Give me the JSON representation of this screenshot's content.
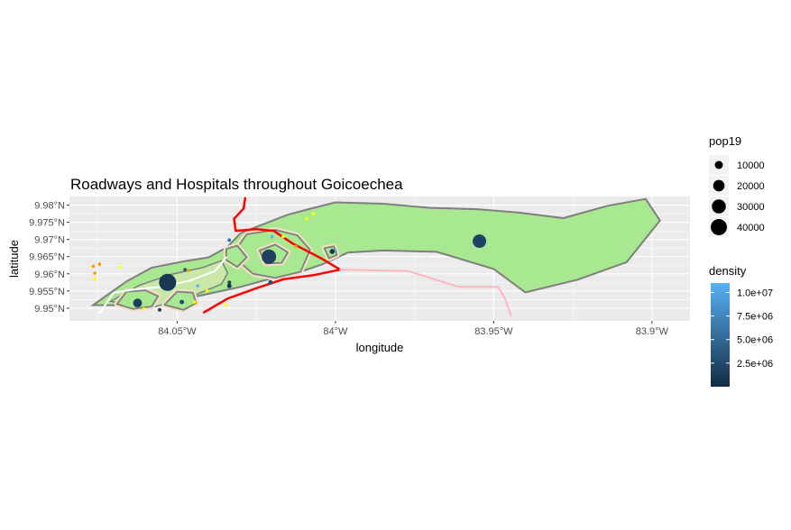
{
  "chart_data": {
    "type": "map",
    "title": "Roadways and Hospitals throughout Goicoechea",
    "xlabel": "longitude",
    "ylabel": "latitude",
    "x_ticks": [
      {
        "value": -84.05,
        "label": "84.05°W"
      },
      {
        "value": -84.0,
        "label": "84°W"
      },
      {
        "value": -83.95,
        "label": "83.95°W"
      },
      {
        "value": -83.9,
        "label": "83.9°W"
      }
    ],
    "y_ticks": [
      {
        "value": 9.95,
        "label": "9.95°N"
      },
      {
        "value": 9.955,
        "label": "9.955°N"
      },
      {
        "value": 9.96,
        "label": "9.96°N"
      },
      {
        "value": 9.965,
        "label": "9.965°N"
      },
      {
        "value": 9.97,
        "label": "9.97°N"
      },
      {
        "value": 9.975,
        "label": "9.975°N"
      },
      {
        "value": 9.98,
        "label": "9.98°N"
      }
    ],
    "xlim": [
      -84.084,
      -83.888
    ],
    "ylim": [
      9.9463,
      9.9825
    ],
    "colors": {
      "panel": "#ebebeb",
      "grid": "#ffffff",
      "district_fill": "#a8e890",
      "district_border": "#7f7f7f",
      "inner_fill": "#c9e8a8",
      "urban_fill": "#f2e0c4",
      "road_primary": "#ff0000",
      "road_secondary": "#ffb6c1",
      "road_local": "#ffffff",
      "hospital_orange": "#ff9900",
      "hospital_yellow": "#ffff00",
      "hospital_blue": "#56b1f7"
    },
    "size_legend": {
      "title": "pop19",
      "entries": [
        {
          "label": "10000",
          "value": 10000
        },
        {
          "label": "20000",
          "value": 20000
        },
        {
          "label": "30000",
          "value": 30000
        },
        {
          "label": "40000",
          "value": 40000
        }
      ]
    },
    "color_legend": {
      "title": "density",
      "range": [
        0,
        11000000
      ],
      "low_color": "#132b43",
      "high_color": "#56b1f7",
      "entries": [
        {
          "label": "1.0e+07",
          "value": 10000000
        },
        {
          "label": "7.5e+06",
          "value": 7500000
        },
        {
          "label": "5.0e+06",
          "value": 5000000
        },
        {
          "label": "2.5e+06",
          "value": 2500000
        }
      ]
    },
    "district_outline": [
      [
        -84.0765,
        9.9509
      ],
      [
        -84.066,
        9.9578
      ],
      [
        -84.058,
        9.9618
      ],
      [
        -84.048,
        9.9636
      ],
      [
        -84.04,
        9.9648
      ],
      [
        -84.034,
        9.9679
      ],
      [
        -84.03,
        9.9718
      ],
      [
        -84.024,
        9.974
      ],
      [
        -84.015,
        9.9772
      ],
      [
        -84.0085,
        9.9788
      ],
      [
        -84.0,
        9.9808
      ],
      [
        -83.985,
        9.9804
      ],
      [
        -83.97,
        9.9792
      ],
      [
        -83.955,
        9.9788
      ],
      [
        -83.942,
        9.9778
      ],
      [
        -83.928,
        9.9762
      ],
      [
        -83.914,
        9.9798
      ],
      [
        -83.902,
        9.9818
      ],
      [
        -83.8975,
        9.9755
      ],
      [
        -83.908,
        9.9634
      ],
      [
        -83.9235,
        9.9583
      ],
      [
        -83.94,
        9.9546
      ],
      [
        -83.95,
        9.9614
      ],
      [
        -83.968,
        9.9664
      ],
      [
        -83.985,
        9.9668
      ],
      [
        -83.996,
        9.9662
      ],
      [
        -84.004,
        9.9628
      ],
      [
        -84.012,
        9.9603
      ],
      [
        -84.022,
        9.9582
      ],
      [
        -84.03,
        9.9562
      ],
      [
        -84.042,
        9.9538
      ],
      [
        -84.058,
        9.9508
      ],
      [
        -84.0765,
        9.9509
      ]
    ],
    "inner_outline": [
      [
        -84.071,
        9.952
      ],
      [
        -84.062,
        9.9566
      ],
      [
        -84.052,
        9.9598
      ],
      [
        -84.042,
        9.9618
      ],
      [
        -84.036,
        9.9638
      ],
      [
        -84.034,
        9.9602
      ],
      [
        -84.036,
        9.957
      ],
      [
        -84.046,
        9.9532
      ],
      [
        -84.058,
        9.9502
      ],
      [
        -84.071,
        9.952
      ]
    ],
    "urban_zones": [
      [
        [
          -84.069,
          9.9512
        ],
        [
          -84.066,
          9.9548
        ],
        [
          -84.06,
          9.9552
        ],
        [
          -84.056,
          9.9535
        ],
        [
          -84.058,
          9.9505
        ],
        [
          -84.064,
          9.9498
        ],
        [
          -84.069,
          9.9512
        ]
      ],
      [
        [
          -84.054,
          9.951
        ],
        [
          -84.05,
          9.9548
        ],
        [
          -84.045,
          9.9545
        ],
        [
          -84.044,
          9.9515
        ],
        [
          -84.048,
          9.9495
        ],
        [
          -84.054,
          9.951
        ]
      ],
      [
        [
          -84.028,
          9.9715
        ],
        [
          -84.019,
          9.9728
        ],
        [
          -84.012,
          9.9712
        ],
        [
          -84.008,
          9.967
        ],
        [
          -84.011,
          9.9606
        ],
        [
          -84.019,
          9.9588
        ],
        [
          -84.026,
          9.96
        ],
        [
          -84.03,
          9.9632
        ],
        [
          -84.031,
          9.9676
        ],
        [
          -84.028,
          9.9715
        ]
      ],
      [
        [
          -84.024,
          9.9668
        ],
        [
          -84.019,
          9.9685
        ],
        [
          -84.015,
          9.9662
        ],
        [
          -84.017,
          9.9632
        ],
        [
          -84.022,
          9.963
        ],
        [
          -84.024,
          9.9668
        ]
      ],
      [
        [
          -84.0345,
          9.9672
        ],
        [
          -84.031,
          9.9682
        ],
        [
          -84.028,
          9.9648
        ],
        [
          -84.031,
          9.962
        ],
        [
          -84.0345,
          9.964
        ],
        [
          -84.0345,
          9.9672
        ]
      ],
      [
        [
          -84.0035,
          9.9675
        ],
        [
          -84.0005,
          9.968
        ],
        [
          -83.9995,
          9.9655
        ],
        [
          -84.002,
          9.9645
        ],
        [
          -84.0035,
          9.9675
        ]
      ]
    ],
    "roads": [
      {
        "class": "primary",
        "points": [
          [
            -84.0285,
            9.982
          ],
          [
            -84.029,
            9.979
          ],
          [
            -84.032,
            9.976
          ],
          [
            -84.0315,
            9.9725
          ],
          [
            -84.025,
            9.973
          ],
          [
            -84.0195,
            9.9725
          ],
          [
            -84.0135,
            9.9688
          ],
          [
            -84.0045,
            9.9645
          ],
          [
            -83.9985,
            9.9612
          ]
        ]
      },
      {
        "class": "primary",
        "points": [
          [
            -84.0415,
            9.9488
          ],
          [
            -84.034,
            9.9528
          ],
          [
            -84.025,
            9.9558
          ],
          [
            -84.0165,
            9.9584
          ],
          [
            -84.007,
            9.9596
          ],
          [
            -83.9985,
            9.9612
          ]
        ]
      },
      {
        "class": "secondary",
        "points": [
          [
            -83.9985,
            9.9612
          ],
          [
            -83.977,
            9.9608
          ],
          [
            -83.961,
            9.9562
          ],
          [
            -83.9485,
            9.9562
          ],
          [
            -83.9465,
            9.9528
          ],
          [
            -83.9445,
            9.9478
          ]
        ]
      },
      {
        "class": "local",
        "points": [
          [
            -84.0745,
            9.9485
          ],
          [
            -84.07,
            9.9545
          ],
          [
            -84.063,
            9.9555
          ],
          [
            -84.055,
            9.9562
          ],
          [
            -84.046,
            9.958
          ],
          [
            -84.038,
            9.9608
          ],
          [
            -84.0345,
            9.9648
          ]
        ]
      }
    ],
    "hospitals": [
      {
        "lon": -84.0765,
        "lat": 9.9622,
        "color": "orange"
      },
      {
        "lon": -84.076,
        "lat": 9.9602,
        "color": "orange"
      },
      {
        "lon": -84.0745,
        "lat": 9.9628,
        "color": "orange"
      },
      {
        "lon": -84.076,
        "lat": 9.9585,
        "color": "yellow"
      },
      {
        "lon": -84.068,
        "lat": 9.962,
        "color": "yellow"
      },
      {
        "lon": -84.0465,
        "lat": 9.961,
        "color": "orange"
      },
      {
        "lon": -84.0435,
        "lat": 9.9565,
        "color": "blue"
      },
      {
        "lon": -84.0405,
        "lat": 9.955,
        "color": "yellow"
      },
      {
        "lon": -84.0345,
        "lat": 9.951,
        "color": "yellow"
      },
      {
        "lon": -84.0445,
        "lat": 9.9518,
        "color": "yellow"
      },
      {
        "lon": -84.0605,
        "lat": 9.9498,
        "color": "yellow"
      },
      {
        "lon": -84.0165,
        "lat": 9.9708,
        "color": "yellow"
      },
      {
        "lon": -84.0125,
        "lat": 9.968,
        "color": "orange"
      },
      {
        "lon": -84.009,
        "lat": 9.976,
        "color": "yellow"
      },
      {
        "lon": -84.007,
        "lat": 9.9775,
        "color": "yellow"
      },
      {
        "lon": -84.02,
        "lat": 9.9708,
        "color": "blue"
      },
      {
        "lon": -84.0,
        "lat": 9.9668,
        "color": "blue"
      }
    ],
    "population_points": [
      {
        "lon": -84.053,
        "lat": 9.9575,
        "pop19": 45000,
        "density": 1000000
      },
      {
        "lon": -84.021,
        "lat": 9.965,
        "pop19": 32000,
        "density": 1800000
      },
      {
        "lon": -83.9545,
        "lat": 9.9695,
        "pop19": 28000,
        "density": 2000000
      },
      {
        "lon": -84.0625,
        "lat": 9.9515,
        "pop19": 12000,
        "density": 1500000
      },
      {
        "lon": -84.0335,
        "lat": 9.9565,
        "pop19": 3000,
        "density": 800000
      },
      {
        "lon": -84.0335,
        "lat": 9.9575,
        "pop19": 2000,
        "density": 2000000
      },
      {
        "lon": -84.0205,
        "lat": 9.9575,
        "pop19": 3000,
        "density": 3000000
      },
      {
        "lon": -84.001,
        "lat": 9.9665,
        "pop19": 4000,
        "density": 1000000
      },
      {
        "lon": -84.0485,
        "lat": 9.9518,
        "pop19": 3000,
        "density": 2500000
      },
      {
        "lon": -84.0555,
        "lat": 9.9495,
        "pop19": 1500,
        "density": 1200000
      },
      {
        "lon": -84.0475,
        "lat": 9.9612,
        "pop19": 1500,
        "density": 4000000
      },
      {
        "lon": -84.0335,
        "lat": 9.9698,
        "pop19": 1500,
        "density": 6000000
      }
    ]
  }
}
